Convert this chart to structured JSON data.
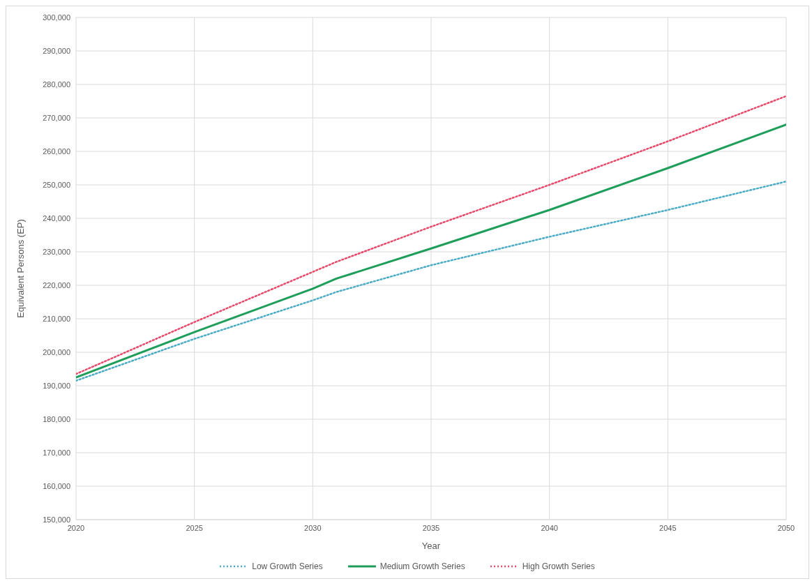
{
  "chart_data": {
    "type": "line",
    "xlabel": "Year",
    "ylabel": "Equivalent Persons (EP)",
    "x": [
      2020,
      2025,
      2030,
      2031,
      2035,
      2040,
      2045,
      2050
    ],
    "series": [
      {
        "name": "Low Growth Series",
        "color": "#4bacc6",
        "line_style": "dotted",
        "values": [
          191500,
          204000,
          215500,
          218000,
          226000,
          234500,
          242500,
          251000
        ]
      },
      {
        "name": "Medium Growth Series",
        "color": "#1e9e5a",
        "line_style": "solid",
        "values": [
          192500,
          206000,
          219000,
          222000,
          231000,
          242500,
          255000,
          268000
        ]
      },
      {
        "name": "High Growth Series",
        "color": "#e8496a",
        "line_style": "dotted",
        "values": [
          193500,
          209000,
          224000,
          227000,
          237500,
          250000,
          263000,
          276500
        ]
      }
    ],
    "xlim": [
      2020,
      2050
    ],
    "xticks": [
      2020,
      2025,
      2030,
      2035,
      2040,
      2045,
      2050
    ],
    "ylim": [
      150000,
      300000
    ],
    "yticks": [
      {
        "value": 150000,
        "label": "150,000"
      },
      {
        "value": 160000,
        "label": "160,000"
      },
      {
        "value": 170000,
        "label": "170,000"
      },
      {
        "value": 180000,
        "label": "180,000"
      },
      {
        "value": 190000,
        "label": "190,000"
      },
      {
        "value": 200000,
        "label": "200,000"
      },
      {
        "value": 210000,
        "label": "210,000"
      },
      {
        "value": 220000,
        "label": "220,000"
      },
      {
        "value": 230000,
        "label": "230,000"
      },
      {
        "value": 240000,
        "label": "240,000"
      },
      {
        "value": 250000,
        "label": "250,000"
      },
      {
        "value": 260000,
        "label": "260,000"
      },
      {
        "value": 270000,
        "label": "270,000"
      },
      {
        "value": 280000,
        "label": "280,000"
      },
      {
        "value": 290000,
        "label": "290,000"
      },
      {
        "value": 300000,
        "label": "300,000"
      }
    ],
    "grid": true,
    "legend": "bottom",
    "marker": "none"
  }
}
